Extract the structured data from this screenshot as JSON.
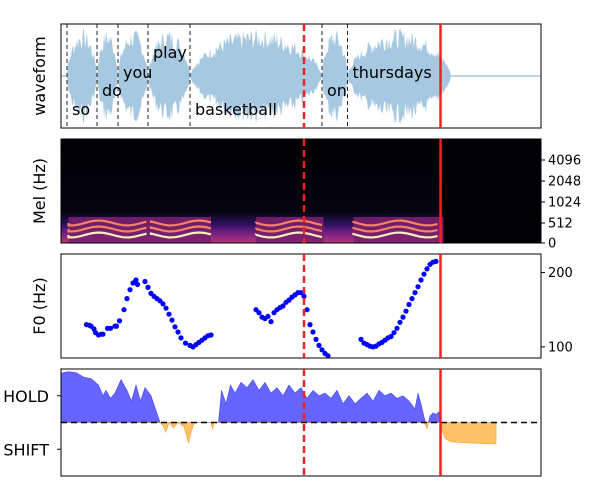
{
  "chart_data": [
    {
      "panel": "waveform",
      "type": "line",
      "ylabel": "waveform",
      "duration_s": 3.2,
      "words": [
        {
          "label": "so",
          "start": 0.04,
          "end": 0.24
        },
        {
          "label": "do",
          "start": 0.24,
          "end": 0.38
        },
        {
          "label": "you",
          "start": 0.38,
          "end": 0.58
        },
        {
          "label": "play",
          "start": 0.58,
          "end": 0.86
        },
        {
          "label": "basketball",
          "start": 0.86,
          "end": 1.74
        },
        {
          "label": "on",
          "start": 1.74,
          "end": 1.91
        },
        {
          "label": "thursdays",
          "start": 1.91,
          "end": 2.6
        }
      ],
      "word_label_level": [
        "low",
        "mid",
        "high",
        "top",
        "low",
        "mid",
        "high"
      ],
      "color": "#a6c8e0"
    },
    {
      "panel": "mel",
      "type": "heatmap",
      "ylabel": "Mel (Hz)",
      "ytick_labels": [
        "0",
        "512",
        "1024",
        "2048",
        "4096"
      ],
      "yticks": [
        0,
        512,
        1024,
        2048,
        4096
      ],
      "colormap": "magma"
    },
    {
      "panel": "f0",
      "type": "scatter",
      "ylabel": "F0 (Hz)",
      "ylim": [
        85,
        225
      ],
      "yticks": [
        100,
        200
      ],
      "ytick_labels": [
        "100",
        "200"
      ],
      "color": "#0000ff",
      "points": [
        [
          0.17,
          130
        ],
        [
          0.19,
          129
        ],
        [
          0.2,
          128
        ],
        [
          0.22,
          124
        ],
        [
          0.23,
          119
        ],
        [
          0.25,
          116
        ],
        [
          0.27,
          117
        ],
        [
          0.28,
          117
        ],
        [
          0.31,
          125
        ],
        [
          0.33,
          125
        ],
        [
          0.36,
          128
        ],
        [
          0.37,
          128
        ],
        [
          0.39,
          135
        ],
        [
          0.42,
          150
        ],
        [
          0.44,
          165
        ],
        [
          0.46,
          177
        ],
        [
          0.48,
          186
        ],
        [
          0.5,
          190
        ],
        [
          0.51,
          184
        ],
        [
          0.56,
          188
        ],
        [
          0.58,
          180
        ],
        [
          0.6,
          172
        ],
        [
          0.62,
          168
        ],
        [
          0.64,
          165
        ],
        [
          0.66,
          162
        ],
        [
          0.68,
          158
        ],
        [
          0.7,
          152
        ],
        [
          0.72,
          144
        ],
        [
          0.74,
          136
        ],
        [
          0.76,
          127
        ],
        [
          0.78,
          120
        ],
        [
          0.8,
          112
        ],
        [
          0.83,
          105
        ],
        [
          0.86,
          102
        ],
        [
          0.88,
          100
        ],
        [
          0.9,
          103
        ],
        [
          0.92,
          106
        ],
        [
          0.94,
          109
        ],
        [
          0.96,
          112
        ],
        [
          0.98,
          115
        ],
        [
          1.0,
          116
        ],
        [
          1.3,
          150
        ],
        [
          1.32,
          146
        ],
        [
          1.34,
          140
        ],
        [
          1.36,
          138
        ],
        [
          1.38,
          141
        ],
        [
          1.4,
          134
        ],
        [
          1.42,
          146
        ],
        [
          1.44,
          150
        ],
        [
          1.46,
          153
        ],
        [
          1.48,
          155
        ],
        [
          1.5,
          160
        ],
        [
          1.52,
          163
        ],
        [
          1.54,
          167
        ],
        [
          1.56,
          170
        ],
        [
          1.58,
          173
        ],
        [
          1.6,
          173
        ],
        [
          1.62,
          168
        ],
        [
          1.64,
          150
        ],
        [
          1.66,
          130
        ],
        [
          1.68,
          120
        ],
        [
          1.7,
          110
        ],
        [
          1.72,
          102
        ],
        [
          1.74,
          96
        ],
        [
          1.76,
          91
        ],
        [
          1.78,
          88
        ],
        [
          2.0,
          110
        ],
        [
          2.02,
          105
        ],
        [
          2.04,
          103
        ],
        [
          2.06,
          101
        ],
        [
          2.08,
          100
        ],
        [
          2.1,
          101
        ],
        [
          2.12,
          104
        ],
        [
          2.14,
          106
        ],
        [
          2.16,
          109
        ],
        [
          2.18,
          112
        ],
        [
          2.2,
          114
        ],
        [
          2.22,
          119
        ],
        [
          2.24,
          125
        ],
        [
          2.26,
          133
        ],
        [
          2.28,
          140
        ],
        [
          2.3,
          148
        ],
        [
          2.32,
          157
        ],
        [
          2.34,
          165
        ],
        [
          2.36,
          173
        ],
        [
          2.38,
          181
        ],
        [
          2.4,
          190
        ],
        [
          2.42,
          198
        ],
        [
          2.44,
          205
        ],
        [
          2.46,
          211
        ],
        [
          2.48,
          214
        ],
        [
          2.5,
          215
        ]
      ]
    },
    {
      "panel": "vap",
      "type": "area",
      "ytick_labels": [
        "HOLD",
        "SHIFT"
      ],
      "ylim": [
        -1,
        1
      ],
      "yticks": [
        0.5,
        -0.5
      ],
      "threshold": 0,
      "hold_color": "#6666ff",
      "shift_color": "#ffc266",
      "values": [
        [
          0.0,
          0.92
        ],
        [
          0.05,
          0.95
        ],
        [
          0.1,
          0.93
        ],
        [
          0.15,
          0.85
        ],
        [
          0.2,
          0.82
        ],
        [
          0.25,
          0.7
        ],
        [
          0.28,
          0.5
        ],
        [
          0.3,
          0.6
        ],
        [
          0.33,
          0.45
        ],
        [
          0.36,
          0.55
        ],
        [
          0.4,
          0.8
        ],
        [
          0.44,
          0.6
        ],
        [
          0.47,
          0.4
        ],
        [
          0.5,
          0.7
        ],
        [
          0.53,
          0.4
        ],
        [
          0.56,
          0.65
        ],
        [
          0.6,
          0.5
        ],
        [
          0.63,
          0.25
        ],
        [
          0.66,
          0.0
        ],
        [
          0.68,
          -0.05
        ],
        [
          0.7,
          -0.18
        ],
        [
          0.72,
          0.0
        ],
        [
          0.75,
          -0.1
        ],
        [
          0.78,
          0.0
        ],
        [
          0.82,
          -0.08
        ],
        [
          0.85,
          -0.38
        ],
        [
          0.87,
          -0.15
        ],
        [
          0.89,
          0.0
        ],
        [
          1.0,
          0.0
        ],
        [
          1.01,
          -0.12
        ],
        [
          1.02,
          0.0
        ],
        [
          1.05,
          0.0
        ],
        [
          1.07,
          0.6
        ],
        [
          1.1,
          0.35
        ],
        [
          1.13,
          0.7
        ],
        [
          1.16,
          0.55
        ],
        [
          1.2,
          0.75
        ],
        [
          1.24,
          0.65
        ],
        [
          1.28,
          0.8
        ],
        [
          1.32,
          0.6
        ],
        [
          1.36,
          0.75
        ],
        [
          1.4,
          0.55
        ],
        [
          1.44,
          0.65
        ],
        [
          1.48,
          0.5
        ],
        [
          1.52,
          0.7
        ],
        [
          1.56,
          0.55
        ],
        [
          1.6,
          0.65
        ],
        [
          1.64,
          0.45
        ],
        [
          1.68,
          0.6
        ],
        [
          1.72,
          0.5
        ],
        [
          1.76,
          0.55
        ],
        [
          1.8,
          0.45
        ],
        [
          1.84,
          0.6
        ],
        [
          1.88,
          0.35
        ],
        [
          1.92,
          0.5
        ],
        [
          1.96,
          0.35
        ],
        [
          2.0,
          0.45
        ],
        [
          2.04,
          0.55
        ],
        [
          2.08,
          0.4
        ],
        [
          2.12,
          0.6
        ],
        [
          2.16,
          0.5
        ],
        [
          2.2,
          0.55
        ],
        [
          2.24,
          0.45
        ],
        [
          2.28,
          0.5
        ],
        [
          2.32,
          0.4
        ],
        [
          2.36,
          0.25
        ],
        [
          2.38,
          0.55
        ],
        [
          2.4,
          0.35
        ],
        [
          2.42,
          0.1
        ],
        [
          2.43,
          -0.05
        ],
        [
          2.44,
          -0.12
        ],
        [
          2.45,
          0.0
        ],
        [
          2.46,
          0.12
        ],
        [
          2.48,
          0.18
        ],
        [
          2.5,
          0.15
        ],
        [
          2.52,
          0.2
        ],
        [
          2.53,
          0.0
        ],
        [
          2.54,
          -0.15
        ],
        [
          2.56,
          -0.3
        ],
        [
          2.6,
          -0.36
        ],
        [
          2.65,
          -0.37
        ],
        [
          2.7,
          -0.38
        ],
        [
          2.8,
          -0.39
        ],
        [
          2.9,
          -0.4
        ]
      ]
    }
  ],
  "markers": {
    "dashed_time": 1.62,
    "solid_time": 2.53,
    "color": "#ee2222"
  }
}
